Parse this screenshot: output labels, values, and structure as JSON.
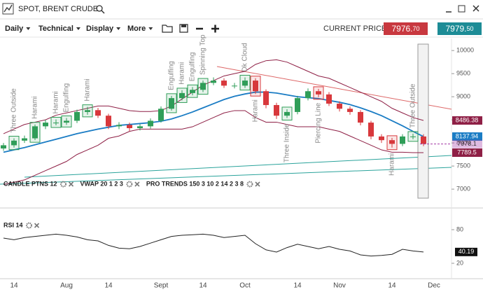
{
  "header": {
    "title": "SPOT, BRENT CRUDE",
    "menu": [
      "Daily",
      "Technical",
      "Display",
      "More"
    ],
    "price_label": "CURRENT PRICE:",
    "bid": "7976.70",
    "ask": "7979.50"
  },
  "chart_data": [
    {
      "type": "candlestick",
      "categories": [
        null,
        "14",
        null,
        null,
        null,
        null,
        "Aug",
        null,
        null,
        null,
        "14",
        null,
        null,
        null,
        null,
        "Sept",
        null,
        null,
        null,
        "14",
        null,
        null,
        null,
        "Oct",
        null,
        null,
        null,
        null,
        "14",
        null,
        null,
        null,
        "Nov",
        null,
        null,
        null,
        null,
        "14",
        null,
        null,
        null,
        "Dec"
      ],
      "open": [
        7880,
        7950,
        8050,
        8100,
        8360,
        8440,
        8440,
        8480,
        8670,
        8710,
        8590,
        8360,
        8390,
        8320,
        8360,
        8480,
        8740,
        8970,
        9080,
        9150,
        9300,
        9350,
        9240,
        9240,
        9350,
        9120,
        8820,
        8590,
        8670,
        8970,
        9120,
        9050,
        8850,
        8740,
        8670,
        8440,
        8140,
        8060,
        7980,
        8140,
        8140,
        null
      ],
      "high": [
        8000,
        8100,
        8160,
        8400,
        8500,
        8510,
        8540,
        8720,
        8780,
        8760,
        8630,
        8450,
        8440,
        8410,
        8530,
        8790,
        9020,
        9140,
        9210,
        9350,
        9420,
        9400,
        9300,
        9420,
        9400,
        9160,
        8870,
        8730,
        9020,
        9180,
        9170,
        9100,
        8900,
        8790,
        8710,
        8480,
        8190,
        8110,
        8190,
        8200,
        8190,
        null
      ],
      "low": [
        7830,
        7900,
        8000,
        8060,
        8300,
        8380,
        8390,
        8430,
        8610,
        8540,
        8300,
        8300,
        8260,
        8270,
        8310,
        8440,
        8700,
        8920,
        9030,
        9100,
        9250,
        9190,
        9180,
        9190,
        9060,
        8750,
        8520,
        8540,
        8620,
        8920,
        8990,
        8800,
        8680,
        8610,
        8380,
        8080,
        8000,
        7900,
        7930,
        8080,
        7930,
        null
      ],
      "close": [
        7950,
        8050,
        8100,
        8360,
        8440,
        8440,
        8480,
        8670,
        8710,
        8590,
        8360,
        8390,
        8320,
        8360,
        8480,
        8740,
        8970,
        9080,
        9150,
        9300,
        9350,
        9240,
        9240,
        9350,
        9120,
        8820,
        8590,
        8670,
        8970,
        9120,
        9050,
        8850,
        8740,
        8670,
        8440,
        8140,
        8060,
        7980,
        8140,
        8140,
        7980,
        null
      ],
      "up_color": "#2f9e58",
      "down_color": "#d8383c",
      "series": [
        {
          "color": "#8e1f45",
          "values": [
            8200,
            8300,
            8400,
            8450,
            8500,
            8600,
            8650,
            8700,
            8750,
            8800,
            8800,
            8750,
            8700,
            8680,
            8680,
            8700,
            8800,
            8950,
            9100,
            9250,
            9350,
            9450,
            9500,
            9550,
            9700,
            9780,
            9800,
            9750,
            9650,
            9550,
            9450,
            9400,
            9300,
            9200,
            9100,
            9000,
            8900,
            8750,
            8650,
            8550,
            8486.38,
            null
          ]
        },
        {
          "color": "#1a7cc4",
          "values": [
            7800,
            7850,
            7900,
            7960,
            8020,
            8080,
            8140,
            8200,
            8250,
            8300,
            8340,
            8380,
            8400,
            8420,
            8440,
            8470,
            8520,
            8590,
            8670,
            8760,
            8850,
            8940,
            9010,
            9060,
            9100,
            9100,
            9080,
            9040,
            9000,
            8980,
            8960,
            8920,
            8880,
            8830,
            8760,
            8680,
            8590,
            8480,
            8370,
            8250,
            8137.94,
            null
          ]
        },
        {
          "color": "#8e1f45",
          "values": [
            7100,
            7150,
            7200,
            7300,
            7400,
            7500,
            7600,
            7750,
            7850,
            7950,
            8100,
            8150,
            8250,
            8300,
            8300,
            8300,
            8300,
            8300,
            8350,
            8450,
            8550,
            8650,
            8700,
            8700,
            8550,
            8450,
            8450,
            8400,
            8350,
            8350,
            8350,
            8300,
            8250,
            8150,
            8050,
            7950,
            7850,
            7800,
            7800,
            7790,
            7789.5,
            null
          ]
        }
      ],
      "patterns": [
        null,
        "Three Outside",
        null,
        "Harami",
        null,
        "Harami",
        "Engulfing",
        null,
        "Harami",
        null,
        null,
        null,
        null,
        null,
        null,
        null,
        "Engulfing",
        "Harami",
        "Engulfing",
        "Spinning Top",
        null,
        null,
        null,
        "Dk Cloud",
        "Harami",
        null,
        null,
        "Three Inside",
        null,
        null,
        "Piercing Line",
        null,
        null,
        null,
        null,
        null,
        null,
        "Harami",
        null,
        "Three Outside",
        null,
        null
      ],
      "last_price": 7978.1,
      "last_price_color": "#a43aa6",
      "ylim": [
        6850,
        10230
      ],
      "yticks": [
        10000,
        9500,
        9000,
        8500,
        8000,
        7500,
        7000
      ],
      "indicators": [
        "CANDLE PTNS 12",
        "VWAP 20 1 2 3",
        "PRO TRENDS 150 3 10 2 14 2 3 8"
      ]
    },
    {
      "type": "line",
      "title": "RSI 14",
      "color": "#222222",
      "values": [
        65,
        62,
        66,
        68,
        70,
        72,
        70,
        67,
        62,
        60,
        52,
        47,
        46,
        50,
        56,
        62,
        68,
        70,
        71,
        72,
        70,
        66,
        68,
        70,
        55,
        44,
        40,
        48,
        54,
        50,
        46,
        50,
        45,
        42,
        35,
        33,
        34,
        36,
        45,
        42,
        40.19,
        null
      ],
      "ylim": [
        0,
        100
      ],
      "yticks": [
        80,
        20
      ]
    }
  ]
}
